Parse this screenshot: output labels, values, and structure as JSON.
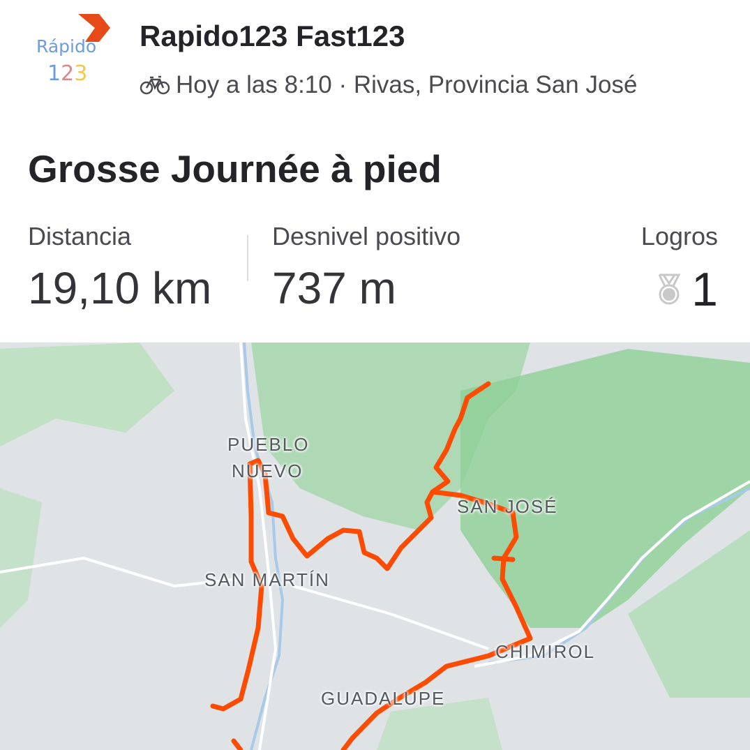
{
  "logo": {
    "text": "Rápido",
    "number": "123"
  },
  "header": {
    "athlete_name": "Rapido123 Fast123",
    "activity_icon": "bicycle-icon",
    "meta": "Hoy a las 8:10 · Rivas, Provincia San José"
  },
  "activity": {
    "title": "Grosse Journée à pied"
  },
  "stats": {
    "distance": {
      "label": "Distancia",
      "value": "19,10 km"
    },
    "elevation": {
      "label": "Desnivel positivo",
      "value": "737 m"
    },
    "achievements": {
      "label": "Logros",
      "value": "1",
      "icon": "medal-icon"
    }
  },
  "map": {
    "route_color": "#fc4c02",
    "places": [
      "PUEBLO",
      "NUEVO",
      "SAN JOSÉ",
      "SAN MARTÍN",
      "CHIMIROL",
      "GUADALUPE"
    ]
  }
}
